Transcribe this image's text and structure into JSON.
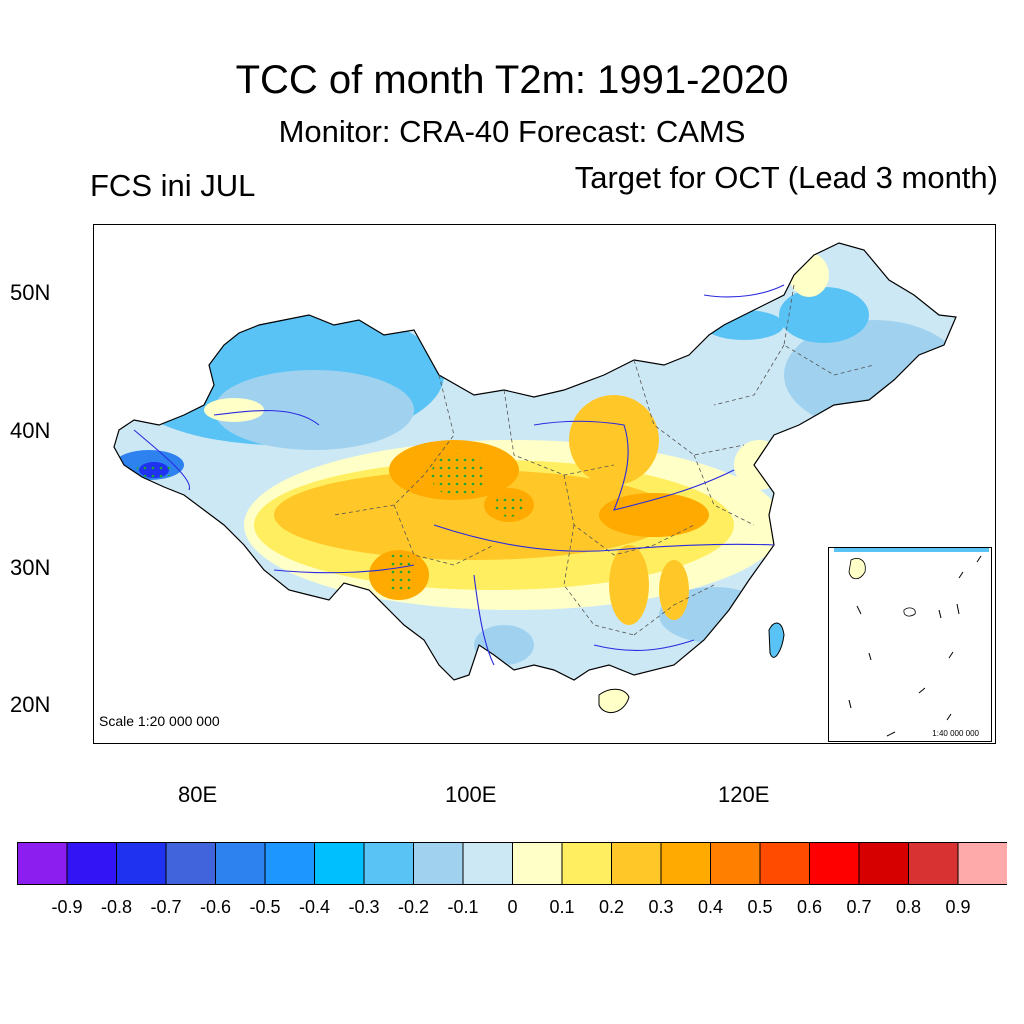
{
  "title": "TCC of month T2m: 1991-2020",
  "subtitle": "Monitor: CRA-40   Forecast: CAMS",
  "left_label": "FCS ini JUL",
  "right_label": "Target for OCT (Lead 3 month)",
  "map": {
    "lat_labels": [
      "50N",
      "40N",
      "30N",
      "20N"
    ],
    "lon_labels": [
      "80E",
      "100E",
      "120E"
    ],
    "scale_main": "Scale 1:20 000 000",
    "scale_inset": "1:40 000 000"
  },
  "colorbar": {
    "colors": [
      "#8c1ef0",
      "#3214f5",
      "#1e32f0",
      "#4164dc",
      "#2d82f0",
      "#1e96ff",
      "#00bfff",
      "#5ac3f5",
      "#a0d2f0",
      "#cde8f5",
      "#ffffc8",
      "#ffee5f",
      "#ffc828",
      "#ffaa00",
      "#ff8000",
      "#ff4b00",
      "#ff0000",
      "#d70000",
      "#d83232",
      "#ffaaaa"
    ],
    "labels": [
      "-0.9",
      "-0.8",
      "-0.7",
      "-0.6",
      "-0.5",
      "-0.4",
      "-0.3",
      "-0.2",
      "-0.1",
      "0",
      "0.1",
      "0.2",
      "0.3",
      "0.4",
      "0.5",
      "0.6",
      "0.7",
      "0.8",
      "0.9"
    ]
  }
}
